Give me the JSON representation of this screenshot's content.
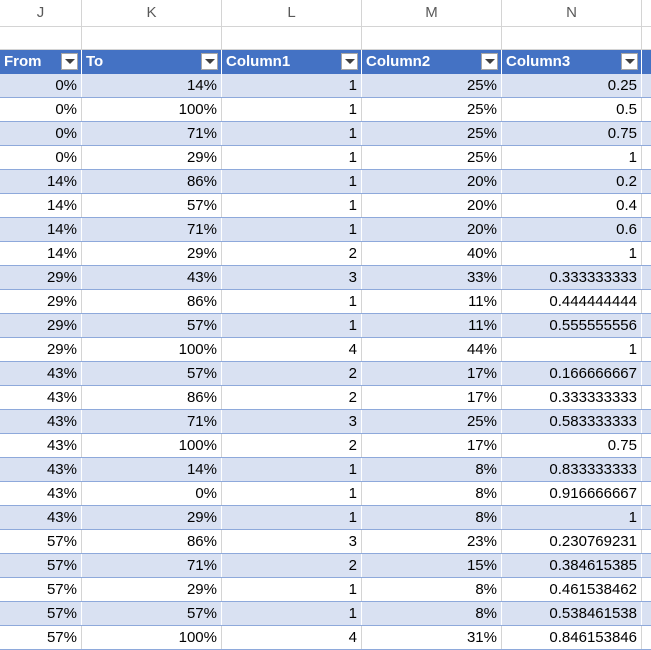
{
  "sheet": {
    "column_letters": [
      "J",
      "K",
      "L",
      "M",
      "N"
    ],
    "table": {
      "headers": [
        "From",
        "To",
        "Column1",
        "Column2",
        "Column3"
      ],
      "rows": [
        [
          "0%",
          "14%",
          "1",
          "25%",
          "0.25"
        ],
        [
          "0%",
          "100%",
          "1",
          "25%",
          "0.5"
        ],
        [
          "0%",
          "71%",
          "1",
          "25%",
          "0.75"
        ],
        [
          "0%",
          "29%",
          "1",
          "25%",
          "1"
        ],
        [
          "14%",
          "86%",
          "1",
          "20%",
          "0.2"
        ],
        [
          "14%",
          "57%",
          "1",
          "20%",
          "0.4"
        ],
        [
          "14%",
          "71%",
          "1",
          "20%",
          "0.6"
        ],
        [
          "14%",
          "29%",
          "2",
          "40%",
          "1"
        ],
        [
          "29%",
          "43%",
          "3",
          "33%",
          "0.333333333"
        ],
        [
          "29%",
          "86%",
          "1",
          "11%",
          "0.444444444"
        ],
        [
          "29%",
          "57%",
          "1",
          "11%",
          "0.555555556"
        ],
        [
          "29%",
          "100%",
          "4",
          "44%",
          "1"
        ],
        [
          "43%",
          "57%",
          "2",
          "17%",
          "0.166666667"
        ],
        [
          "43%",
          "86%",
          "2",
          "17%",
          "0.333333333"
        ],
        [
          "43%",
          "71%",
          "3",
          "25%",
          "0.583333333"
        ],
        [
          "43%",
          "100%",
          "2",
          "17%",
          "0.75"
        ],
        [
          "43%",
          "14%",
          "1",
          "8%",
          "0.833333333"
        ],
        [
          "43%",
          "0%",
          "1",
          "8%",
          "0.916666667"
        ],
        [
          "43%",
          "29%",
          "1",
          "8%",
          "1"
        ],
        [
          "57%",
          "86%",
          "3",
          "23%",
          "0.230769231"
        ],
        [
          "57%",
          "71%",
          "2",
          "15%",
          "0.384615385"
        ],
        [
          "57%",
          "29%",
          "1",
          "8%",
          "0.461538462"
        ],
        [
          "57%",
          "57%",
          "1",
          "8%",
          "0.538461538"
        ],
        [
          "57%",
          "100%",
          "4",
          "31%",
          "0.846153846"
        ]
      ]
    },
    "colors": {
      "header_bg": "#4472c4",
      "band_bg": "#d9e1f2",
      "plain_bg": "#ffffff"
    }
  }
}
